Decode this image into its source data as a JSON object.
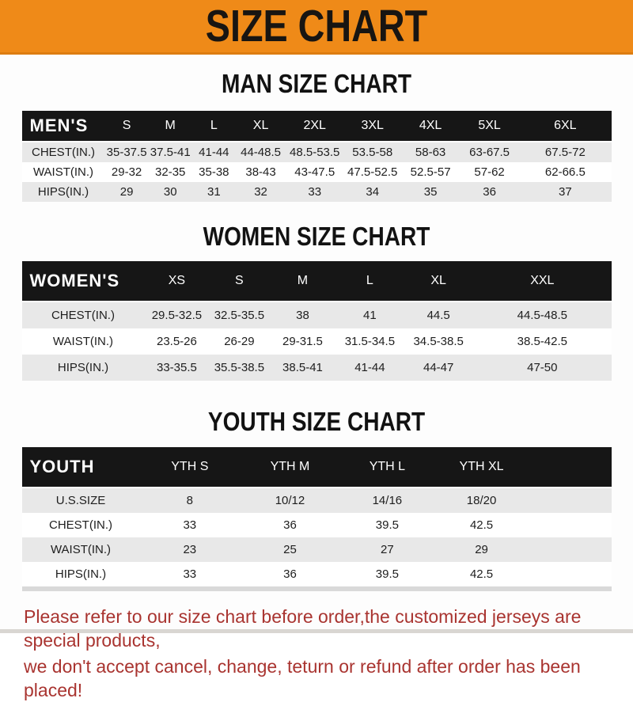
{
  "banner": {
    "title": "SIZE CHART"
  },
  "sections": [
    {
      "heading": "MAN SIZE CHART",
      "table": {
        "label": "MEN'S",
        "columns": [
          "S",
          "M",
          "L",
          "XL",
          "2XL",
          "3XL",
          "4XL",
          "5XL",
          "6XL"
        ],
        "rows": [
          {
            "label": "CHEST(IN.)",
            "values": [
              "35-37.5",
              "37.5-41",
              "41-44",
              "44-48.5",
              "48.5-53.5",
              "53.5-58",
              "58-63",
              "63-67.5",
              "67.5-72"
            ]
          },
          {
            "label": "WAIST(IN.)",
            "values": [
              "29-32",
              "32-35",
              "35-38",
              "38-43",
              "43-47.5",
              "47.5-52.5",
              "52.5-57",
              "57-62",
              "62-66.5"
            ]
          },
          {
            "label": "HIPS(IN.)",
            "values": [
              "29",
              "30",
              "31",
              "32",
              "33",
              "34",
              "35",
              "36",
              "37"
            ]
          }
        ]
      }
    },
    {
      "heading": "WOMEN SIZE CHART",
      "table": {
        "label": "WOMEN'S",
        "columns": [
          "XS",
          "S",
          "M",
          "L",
          "XL",
          "XXL"
        ],
        "rows": [
          {
            "label": "CHEST(IN.)",
            "values": [
              "29.5-32.5",
              "32.5-35.5",
              "38",
              "41",
              "44.5",
              "44.5-48.5"
            ]
          },
          {
            "label": "WAIST(IN.)",
            "values": [
              "23.5-26",
              "26-29",
              "29-31.5",
              "31.5-34.5",
              "34.5-38.5",
              "38.5-42.5"
            ]
          },
          {
            "label": "HIPS(IN.)",
            "values": [
              "33-35.5",
              "35.5-38.5",
              "38.5-41",
              "41-44",
              "44-47",
              "47-50"
            ]
          }
        ]
      }
    },
    {
      "heading": "YOUTH SIZE CHART",
      "table": {
        "label": "YOUTH",
        "columns": [
          "YTH S",
          "YTH M",
          "YTH L",
          "YTH XL"
        ],
        "rows": [
          {
            "label": "U.S.SIZE",
            "values": [
              "8",
              "10/12",
              "14/16",
              "18/20"
            ]
          },
          {
            "label": "CHEST(IN.)",
            "values": [
              "33",
              "36",
              "39.5",
              "42.5"
            ]
          },
          {
            "label": "WAIST(IN.)",
            "values": [
              "23",
              "25",
              "27",
              "29"
            ]
          },
          {
            "label": "HIPS(IN.)",
            "values": [
              "33",
              "36",
              "39.5",
              "42.5"
            ]
          }
        ]
      }
    }
  ],
  "footer": {
    "lines": [
      "Please refer to our size chart before order,the customized jerseys are special products,",
      "we don't accept cancel, change, teturn or refund after order has been placed!"
    ]
  },
  "colors": {
    "banner_bg": "#EF8A18",
    "header_bar": "#161616",
    "stripe_row": "#E8E8E8",
    "footer_text": "#A93430"
  }
}
